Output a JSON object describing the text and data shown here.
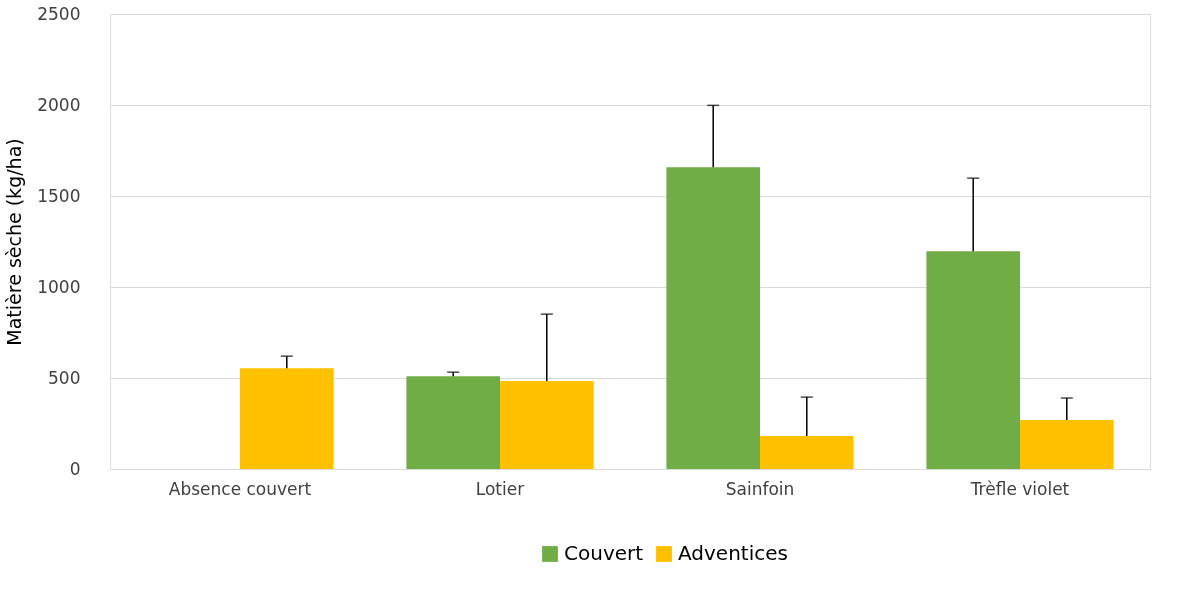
{
  "chart_data": {
    "type": "bar",
    "ylabel": "Matière sèche (kg/ha)",
    "categories": [
      "Absence couvert",
      "Lotier",
      "Sainfoin",
      "Trèfle violet"
    ],
    "series": [
      {
        "name": "Couvert",
        "color": "#70ad47",
        "values": [
          null,
          510,
          1658,
          1197
        ],
        "errors": [
          null,
          [
            510,
            532
          ],
          [
            1658,
            1998
          ],
          [
            1197,
            1598
          ]
        ]
      },
      {
        "name": "Adventices",
        "color": "#ffc000",
        "values": [
          554,
          483,
          181,
          269
        ],
        "errors": [
          [
            554,
            620
          ],
          [
            483,
            851
          ],
          [
            181,
            395
          ],
          [
            269,
            390
          ]
        ]
      }
    ],
    "ylim": [
      0,
      2500
    ],
    "yticks": [
      0,
      500,
      1000,
      1500,
      2000,
      2500
    ],
    "grid": "y",
    "legend": "bottom"
  }
}
